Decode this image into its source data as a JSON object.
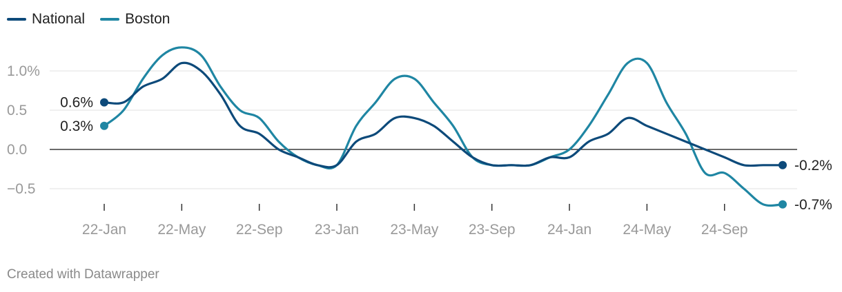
{
  "colors": {
    "national": "#0d4a7a",
    "boston": "#1f86a3",
    "grid": "#e1e1e1",
    "zero": "#111111"
  },
  "footer": {
    "credit": "Created with Datawrapper"
  },
  "chart_data": {
    "type": "line",
    "title": "",
    "xlabel": "",
    "ylabel": "",
    "legend_position": "top-left",
    "grid": true,
    "ylim": [
      -0.7,
      1.3
    ],
    "y_ticks": [
      {
        "value": -0.5,
        "label": "−0.5"
      },
      {
        "value": 0.0,
        "label": "0.0"
      },
      {
        "value": 0.5,
        "label": "0.5"
      },
      {
        "value": 1.0,
        "label": "1.0%"
      }
    ],
    "x_ticks": [
      "22-Jan",
      "22-May",
      "22-Sep",
      "23-Jan",
      "23-May",
      "23-Sep",
      "24-Jan",
      "24-May",
      "24-Sep"
    ],
    "x": [
      "2022-01",
      "2022-02",
      "2022-03",
      "2022-04",
      "2022-05",
      "2022-06",
      "2022-07",
      "2022-08",
      "2022-09",
      "2022-10",
      "2022-11",
      "2022-12",
      "2023-01",
      "2023-02",
      "2023-03",
      "2023-04",
      "2023-05",
      "2023-06",
      "2023-07",
      "2023-08",
      "2023-09",
      "2023-10",
      "2023-11",
      "2023-12",
      "2024-01",
      "2024-02",
      "2024-03",
      "2024-04",
      "2024-05",
      "2024-06",
      "2024-07",
      "2024-08",
      "2024-09",
      "2024-10",
      "2024-11",
      "2024-12"
    ],
    "series": [
      {
        "name": "National",
        "color": "#0d4a7a",
        "end_label": "-0.2%",
        "start_label": "0.6%",
        "values": [
          0.6,
          0.6,
          0.8,
          0.9,
          1.1,
          1.0,
          0.7,
          0.3,
          0.2,
          0.0,
          -0.1,
          -0.2,
          -0.2,
          0.1,
          0.2,
          0.4,
          0.4,
          0.3,
          0.1,
          -0.1,
          -0.2,
          -0.2,
          -0.2,
          -0.1,
          -0.1,
          0.1,
          0.2,
          0.4,
          0.3,
          0.2,
          0.1,
          0.0,
          -0.1,
          -0.2,
          -0.2,
          -0.2
        ]
      },
      {
        "name": "Boston",
        "color": "#1f86a3",
        "end_label": "-0.7%",
        "start_label": "0.3%",
        "values": [
          0.3,
          0.5,
          0.9,
          1.2,
          1.3,
          1.2,
          0.8,
          0.5,
          0.4,
          0.1,
          -0.1,
          -0.2,
          -0.2,
          0.3,
          0.6,
          0.9,
          0.9,
          0.6,
          0.3,
          -0.1,
          -0.2,
          -0.2,
          -0.2,
          -0.1,
          0.0,
          0.3,
          0.7,
          1.1,
          1.1,
          0.6,
          0.2,
          -0.3,
          -0.3,
          -0.5,
          -0.7,
          -0.7
        ]
      }
    ]
  }
}
